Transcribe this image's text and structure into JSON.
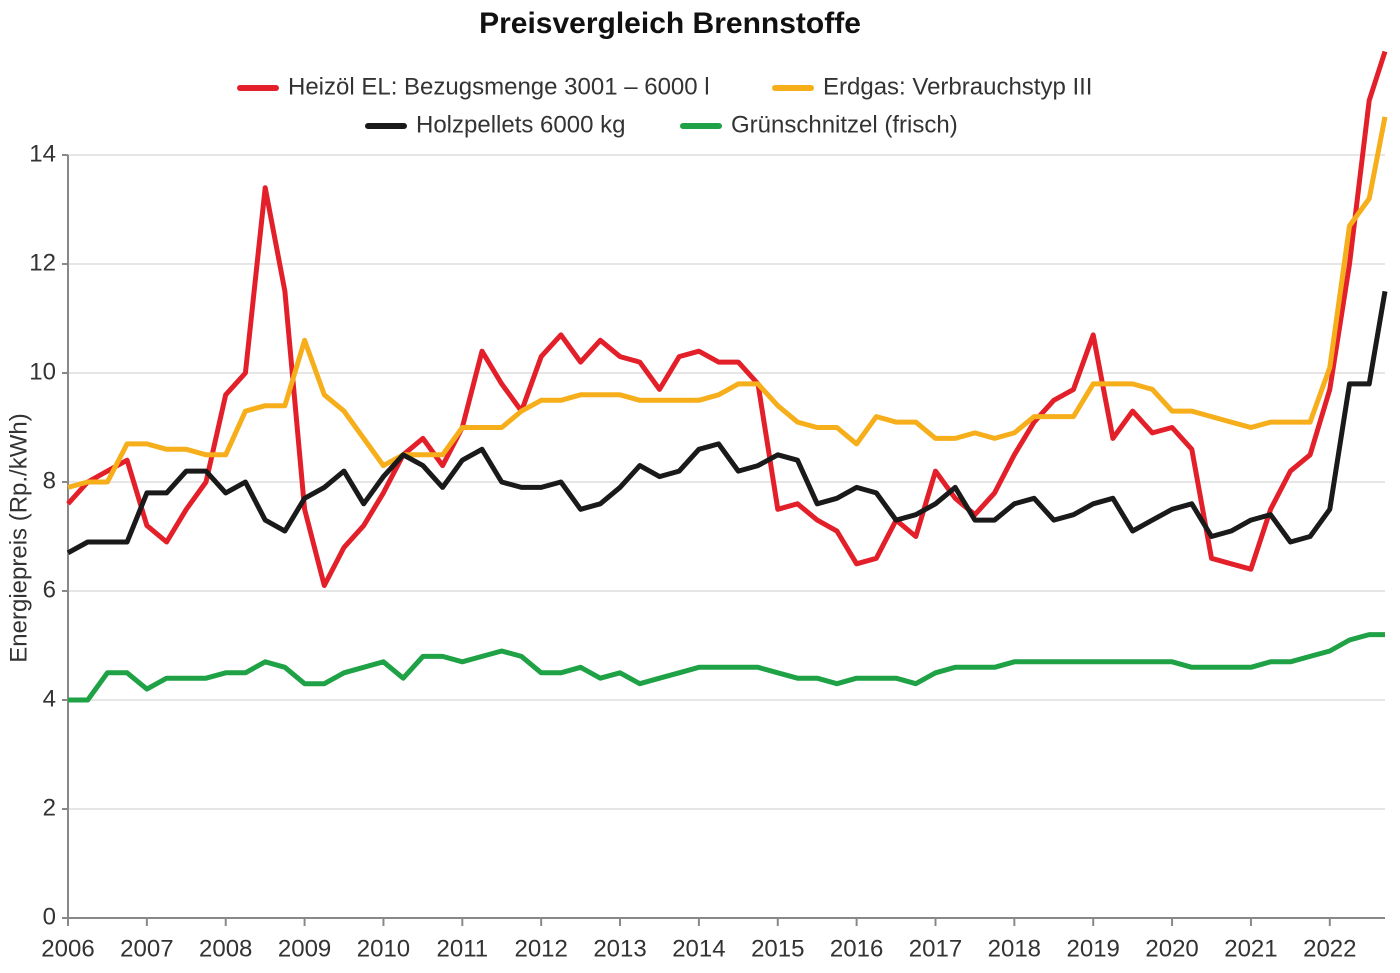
{
  "chart_data": {
    "type": "line",
    "title": "Preisvergleich Brennstoffe",
    "y_label": "Energiepreis (Rp./kWh)",
    "x": [
      2006,
      2006.25,
      2006.5,
      2006.75,
      2007,
      2007.25,
      2007.5,
      2007.75,
      2008,
      2008.25,
      2008.5,
      2008.75,
      2009,
      2009.25,
      2009.5,
      2009.75,
      2010,
      2010.25,
      2010.5,
      2010.75,
      2011,
      2011.25,
      2011.5,
      2011.75,
      2012,
      2012.25,
      2012.5,
      2012.75,
      2013,
      2013.25,
      2013.5,
      2013.75,
      2014,
      2014.25,
      2014.5,
      2014.75,
      2015,
      2015.25,
      2015.5,
      2015.75,
      2016,
      2016.25,
      2016.5,
      2016.75,
      2017,
      2017.25,
      2017.5,
      2017.75,
      2018,
      2018.25,
      2018.5,
      2018.75,
      2019,
      2019.25,
      2019.5,
      2019.75,
      2020,
      2020.25,
      2020.5,
      2020.75,
      2021,
      2021.25,
      2021.5,
      2021.75,
      2022,
      2022.25,
      2022.5,
      2022.7
    ],
    "series": [
      {
        "name": "Heizöl EL: Bezugsmenge 3001 – 6000 l",
        "color": "#e3202a",
        "values": [
          7.6,
          8.0,
          8.2,
          8.4,
          7.2,
          6.9,
          7.5,
          8.0,
          9.6,
          10.0,
          13.4,
          11.5,
          7.5,
          6.1,
          6.8,
          7.2,
          7.8,
          8.5,
          8.8,
          8.3,
          9.0,
          10.4,
          9.8,
          9.3,
          10.3,
          10.7,
          10.2,
          10.6,
          10.3,
          10.2,
          9.7,
          10.3,
          10.4,
          10.2,
          10.2,
          9.8,
          7.5,
          7.6,
          7.3,
          7.1,
          6.5,
          6.6,
          7.3,
          7.0,
          8.2,
          7.7,
          7.4,
          7.8,
          8.5,
          9.1,
          9.5,
          9.7,
          10.7,
          8.8,
          9.3,
          8.9,
          9.0,
          8.6,
          6.6,
          6.5,
          6.4,
          7.5,
          8.2,
          8.5,
          9.7,
          12.0,
          15.0,
          15.9
        ]
      },
      {
        "name": "Erdgas: Verbrauchstyp III",
        "color": "#f6ae1b",
        "values": [
          7.9,
          8.0,
          8.0,
          8.7,
          8.7,
          8.6,
          8.6,
          8.5,
          8.5,
          9.3,
          9.4,
          9.4,
          10.6,
          9.6,
          9.3,
          8.8,
          8.3,
          8.5,
          8.5,
          8.5,
          9.0,
          9.0,
          9.0,
          9.3,
          9.5,
          9.5,
          9.6,
          9.6,
          9.6,
          9.5,
          9.5,
          9.5,
          9.5,
          9.6,
          9.8,
          9.8,
          9.4,
          9.1,
          9.0,
          9.0,
          8.7,
          9.2,
          9.1,
          9.1,
          8.8,
          8.8,
          8.9,
          8.8,
          8.9,
          9.2,
          9.2,
          9.2,
          9.8,
          9.8,
          9.8,
          9.7,
          9.3,
          9.3,
          9.2,
          9.1,
          9.0,
          9.1,
          9.1,
          9.1,
          10.1,
          12.7,
          13.2,
          14.7
        ]
      },
      {
        "name": "Holzpellets 6000 kg",
        "color": "#1a1a1a",
        "values": [
          6.7,
          6.9,
          6.9,
          6.9,
          7.8,
          7.8,
          8.2,
          8.2,
          7.8,
          8.0,
          7.3,
          7.1,
          7.7,
          7.9,
          8.2,
          7.6,
          8.1,
          8.5,
          8.3,
          7.9,
          8.4,
          8.6,
          8.0,
          7.9,
          7.9,
          8.0,
          7.5,
          7.6,
          7.9,
          8.3,
          8.1,
          8.2,
          8.6,
          8.7,
          8.2,
          8.3,
          8.5,
          8.4,
          7.6,
          7.7,
          7.9,
          7.8,
          7.3,
          7.4,
          7.6,
          7.9,
          7.3,
          7.3,
          7.6,
          7.7,
          7.3,
          7.4,
          7.6,
          7.7,
          7.1,
          7.3,
          7.5,
          7.6,
          7.0,
          7.1,
          7.3,
          7.4,
          6.9,
          7.0,
          7.5,
          9.8,
          9.8,
          11.5
        ]
      },
      {
        "name": "Grünschnitzel (frisch)",
        "color": "#1fa245",
        "values": [
          4.0,
          4.0,
          4.5,
          4.5,
          4.2,
          4.4,
          4.4,
          4.4,
          4.5,
          4.5,
          4.7,
          4.6,
          4.3,
          4.3,
          4.5,
          4.6,
          4.7,
          4.4,
          4.8,
          4.8,
          4.7,
          4.8,
          4.9,
          4.8,
          4.5,
          4.5,
          4.6,
          4.4,
          4.5,
          4.3,
          4.4,
          4.5,
          4.6,
          4.6,
          4.6,
          4.6,
          4.5,
          4.4,
          4.4,
          4.3,
          4.4,
          4.4,
          4.4,
          4.3,
          4.5,
          4.6,
          4.6,
          4.6,
          4.7,
          4.7,
          4.7,
          4.7,
          4.7,
          4.7,
          4.7,
          4.7,
          4.7,
          4.6,
          4.6,
          4.6,
          4.6,
          4.7,
          4.7,
          4.8,
          4.9,
          5.1,
          5.2,
          5.2
        ]
      }
    ],
    "xlim": [
      2006,
      2022.7
    ],
    "xticks": [
      2006,
      2007,
      2008,
      2009,
      2010,
      2011,
      2012,
      2013,
      2014,
      2015,
      2016,
      2017,
      2018,
      2019,
      2020,
      2021,
      2022
    ],
    "ylim": [
      0,
      14
    ],
    "yticks": [
      0,
      2,
      4,
      6,
      8,
      10,
      12,
      14
    ],
    "grid": true
  }
}
